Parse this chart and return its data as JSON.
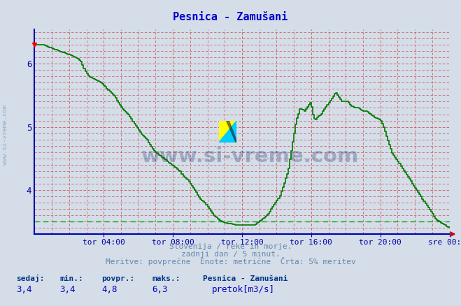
{
  "title": "Pesnica - Zamušani",
  "title_color": "#0000cc",
  "bg_color": "#d4dde8",
  "line_color": "#007700",
  "axis_color": "#0000aa",
  "text_color": "#6688aa",
  "grid_minor_color": "#cc8888",
  "grid_major_color": "#aaaacc",
  "avg_line_color": "#00aa00",
  "xlabel_ticks": [
    "tor 04:00",
    "tor 08:00",
    "tor 12:00",
    "tor 16:00",
    "tor 20:00",
    "sre 00:00"
  ],
  "xlabel_tick_fracs": [
    0.1667,
    0.3333,
    0.5,
    0.6667,
    0.8333,
    1.0
  ],
  "ylim_min": 3.3,
  "ylim_max": 6.55,
  "yticks": [
    4.0,
    5.0,
    6.0
  ],
  "ylabel_avg": 3.5,
  "min_val": 3.4,
  "max_val": 6.3,
  "avg_val": 4.8,
  "curr_val": 3.4,
  "subtitle1": "Slovenija / reke in morje.",
  "subtitle2": "zadnji dan / 5 minut.",
  "subtitle3": "Meritve: povprečne  Enote: metrične  Črta: 5% meritev",
  "footer_label1": "sedaj:",
  "footer_label2": "min.:",
  "footer_label3": "povpr.:",
  "footer_label4": "maks.:",
  "footer_val1": "3,4",
  "footer_val2": "3,4",
  "footer_val3": "4,8",
  "footer_val4": "6,3",
  "footer_series": "Pesnica - Zamušani",
  "footer_legend": "pretok[m3/s]",
  "watermark": "www.si-vreme.com",
  "watermark_color": "#1a3a7a",
  "sivreme_rotated": "www.si-vreme.com"
}
